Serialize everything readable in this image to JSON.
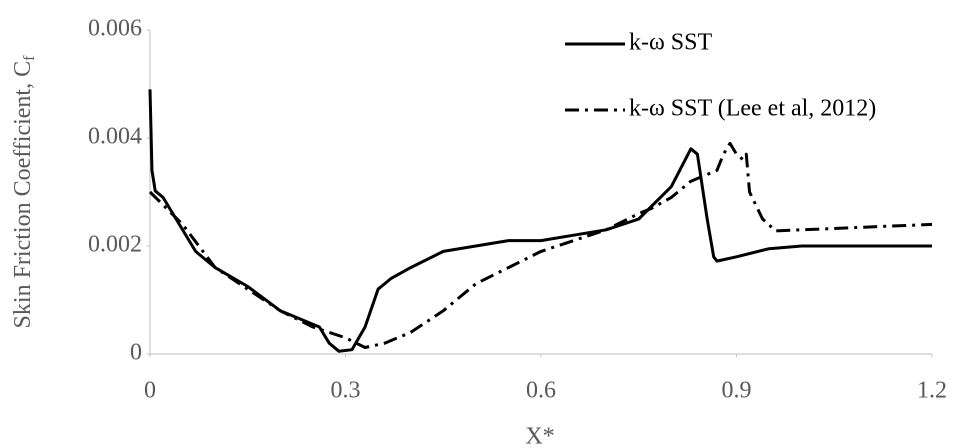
{
  "chart_data": {
    "type": "line",
    "xlabel": "X*",
    "ylabel": "Skin Friction Coefficient, C",
    "ylabel_subscript": "f",
    "xlim": [
      0,
      1.2
    ],
    "xticks": [
      0,
      0.3,
      0.6,
      0.9,
      1.2
    ],
    "ylim": [
      0,
      0.006
    ],
    "yticks": [
      0,
      0.002,
      0.004,
      0.006
    ],
    "grid": false,
    "legend": "top-right",
    "series": [
      {
        "name": "k-ω SST",
        "color": "#000000",
        "line_style": "solid",
        "x": [
          0,
          0.003,
          0.008,
          0.02,
          0.04,
          0.07,
          0.1,
          0.15,
          0.2,
          0.23,
          0.26,
          0.275,
          0.29,
          0.31,
          0.33,
          0.35,
          0.37,
          0.4,
          0.45,
          0.5,
          0.55,
          0.6,
          0.65,
          0.7,
          0.75,
          0.8,
          0.83,
          0.84,
          0.855,
          0.865,
          0.87,
          0.9,
          0.95,
          1.0,
          1.2
        ],
        "values": [
          0.0049,
          0.0034,
          0.00302,
          0.0029,
          0.0025,
          0.0019,
          0.0016,
          0.00125,
          0.0008,
          0.00065,
          0.0005,
          0.0002,
          5e-05,
          8e-05,
          0.0005,
          0.0012,
          0.0014,
          0.0016,
          0.0019,
          0.002,
          0.0021,
          0.0021,
          0.0022,
          0.0023,
          0.0025,
          0.0031,
          0.0038,
          0.0037,
          0.0025,
          0.0018,
          0.00172,
          0.0018,
          0.00195,
          0.002,
          0.002
        ]
      },
      {
        "name": "k-ω SST (Lee et al, 2012)",
        "color": "#000000",
        "line_style": "dashdot",
        "x": [
          0,
          0.05,
          0.1,
          0.15,
          0.2,
          0.25,
          0.3,
          0.33,
          0.36,
          0.4,
          0.45,
          0.5,
          0.55,
          0.6,
          0.65,
          0.7,
          0.75,
          0.77,
          0.8,
          0.83,
          0.85,
          0.87,
          0.88,
          0.89,
          0.9,
          0.91,
          0.915,
          0.92,
          0.94,
          0.96,
          1.0,
          1.1,
          1.2
        ],
        "values": [
          0.003,
          0.0024,
          0.0016,
          0.0012,
          0.0008,
          0.0005,
          0.0003,
          0.00012,
          0.0002,
          0.0004,
          0.0008,
          0.0013,
          0.0016,
          0.0019,
          0.0021,
          0.0023,
          0.0026,
          0.0027,
          0.0029,
          0.0032,
          0.0033,
          0.0034,
          0.0037,
          0.0039,
          0.0037,
          0.0036,
          0.0037,
          0.003,
          0.0025,
          0.00228,
          0.0023,
          0.00235,
          0.0024
        ]
      }
    ]
  }
}
